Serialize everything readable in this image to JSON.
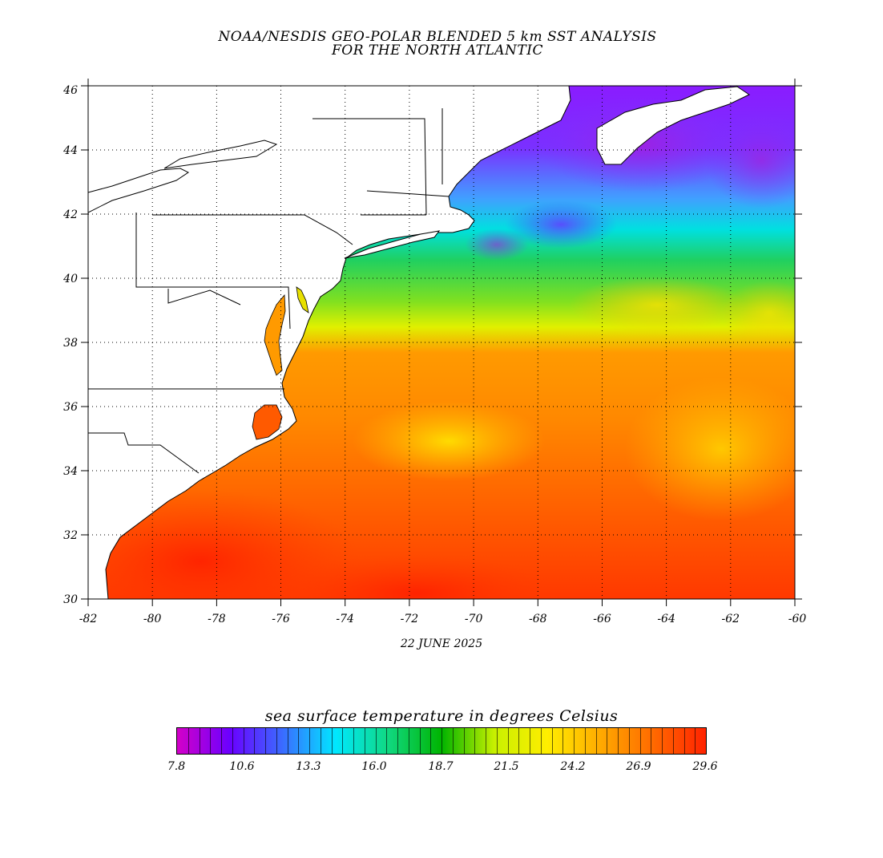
{
  "header": {
    "title_line1": "NOAA/NESDIS GEO-POLAR BLENDED 5 km SST ANALYSIS",
    "title_line2": "FOR THE NORTH ATLANTIC"
  },
  "map": {
    "lon_range": [
      -82,
      -60
    ],
    "lat_range": [
      30,
      46
    ],
    "x_ticks": [
      "-82",
      "-80",
      "-78",
      "-76",
      "-74",
      "-72",
      "-70",
      "-68",
      "-66",
      "-64",
      "-62",
      "-60"
    ],
    "y_ticks": [
      "30",
      "32",
      "34",
      "36",
      "38",
      "40",
      "42",
      "44",
      "46"
    ],
    "grid": true,
    "land_color": "#ffffff",
    "date": "22 JUNE 2025"
  },
  "legend": {
    "title": "sea surface temperature in degrees Celsius",
    "labels": [
      "7.8",
      "10.6",
      "13.3",
      "16.0",
      "18.7",
      "21.5",
      "24.2",
      "26.9",
      "29.6"
    ],
    "color_stops": [
      "#d400c8",
      "#6a00ff",
      "#3a6cff",
      "#00e8ff",
      "#10d880",
      "#00b400",
      "#c8f000",
      "#ffee00",
      "#ffaa00",
      "#ff6a00",
      "#ff2200"
    ]
  }
}
